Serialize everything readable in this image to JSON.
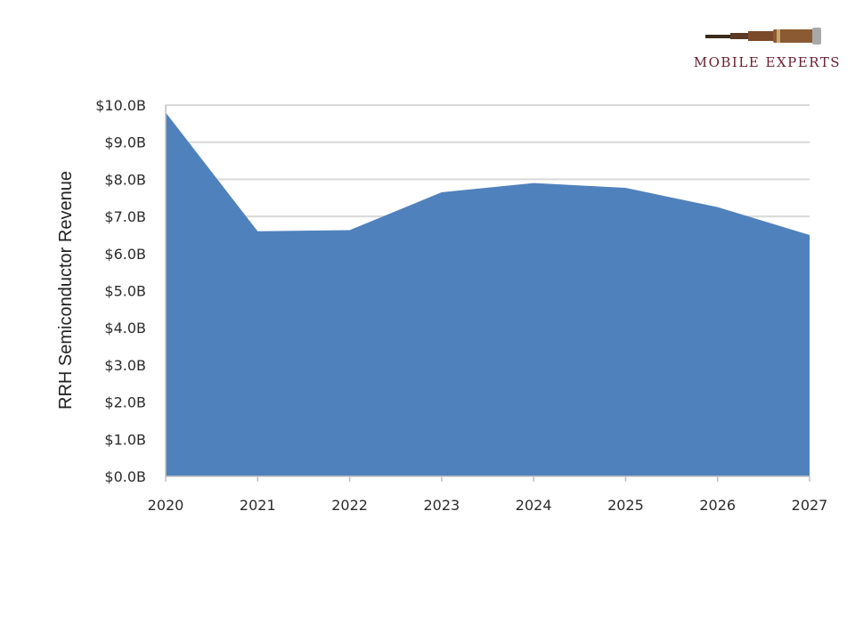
{
  "brand": {
    "name": "MOBILE EXPERTS",
    "logo_icon": "spyglass-icon"
  },
  "chart_data": {
    "type": "area",
    "x": [
      "2020",
      "2021",
      "2022",
      "2023",
      "2024",
      "2025",
      "2026",
      "2027"
    ],
    "series": [
      {
        "values": [
          9.8,
          6.6,
          6.63,
          7.65,
          7.9,
          7.77,
          7.25,
          6.5
        ]
      }
    ],
    "ylabel": "RRH Semiconductor Revenue",
    "xlabel": "",
    "ylim": [
      0,
      10
    ],
    "yticks": [
      "$0.0B",
      "$1.0B",
      "$2.0B",
      "$3.0B",
      "$4.0B",
      "$5.0B",
      "$6.0B",
      "$7.0B",
      "$8.0B",
      "$9.0B",
      "$10.0B"
    ],
    "grid": true,
    "colors": {
      "fill": "#4f81bd",
      "grid": "#d9d9d9",
      "axis": "#bfbfbf"
    }
  }
}
